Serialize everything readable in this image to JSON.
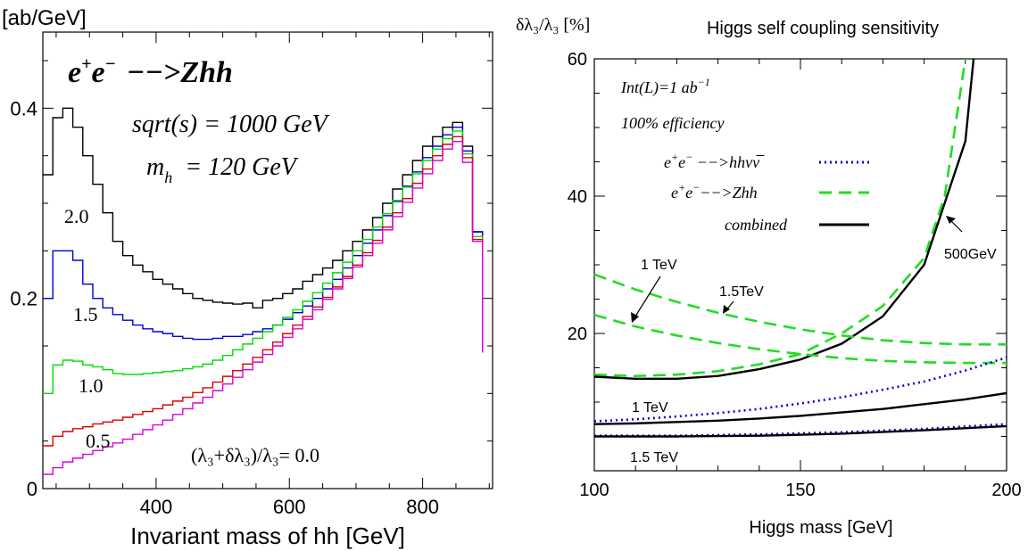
{
  "chart_data": [
    {
      "type": "line",
      "title": "e⁺e⁻ −−> Zhh",
      "title_parts": {
        "base": "e",
        "sup1": "+",
        "base2": "e",
        "sup2": "−",
        "arrow": "−−>",
        "proc": "Zhh"
      },
      "annotations": {
        "sqrts": "sqrt(s) = 1000 GeV",
        "mh_base": "m",
        "mh_sub": "h",
        "mh_rest": "= 120 GeV",
        "lambda_ratio": "(λ₃+δλ₃)/λ₃= 0.0"
      },
      "ylabel": "[ab/GeV]",
      "xlabel": "Invariant mass of hh [GeV]",
      "xlim": [
        230,
        905
      ],
      "ylim": [
        0,
        0.48
      ],
      "x_ticks": [
        "400",
        "600",
        "800"
      ],
      "x_tick_values": [
        400,
        600,
        800
      ],
      "y_ticks": [
        "0",
        "0.2",
        "0.4"
      ],
      "y_tick_values": [
        0,
        0.2,
        0.4
      ],
      "x_bin_edges": [
        230,
        245,
        260,
        275,
        290,
        305,
        320,
        335,
        350,
        365,
        380,
        395,
        410,
        425,
        440,
        455,
        470,
        485,
        500,
        515,
        530,
        545,
        560,
        575,
        590,
        605,
        620,
        635,
        650,
        665,
        680,
        695,
        710,
        725,
        740,
        755,
        770,
        785,
        800,
        815,
        830,
        845,
        860,
        875,
        890
      ],
      "series": [
        {
          "name": "2.0",
          "color": "#000000",
          "values": [
            0.33,
            0.39,
            0.4,
            0.38,
            0.35,
            0.32,
            0.29,
            0.26,
            0.245,
            0.235,
            0.228,
            0.22,
            0.215,
            0.21,
            0.205,
            0.2,
            0.198,
            0.196,
            0.195,
            0.194,
            0.195,
            0.19,
            0.198,
            0.2,
            0.205,
            0.21,
            0.218,
            0.225,
            0.232,
            0.24,
            0.25,
            0.26,
            0.272,
            0.285,
            0.3,
            0.315,
            0.33,
            0.345,
            0.36,
            0.37,
            0.38,
            0.385,
            0.36,
            0.27
          ]
        },
        {
          "name": "1.5",
          "color": "#0000dd",
          "values": [
            0.2,
            0.25,
            0.25,
            0.24,
            0.215,
            0.2,
            0.19,
            0.183,
            0.177,
            0.172,
            0.168,
            0.165,
            0.163,
            0.16,
            0.158,
            0.157,
            0.157,
            0.158,
            0.16,
            0.16,
            0.162,
            0.165,
            0.168,
            0.172,
            0.178,
            0.185,
            0.192,
            0.2,
            0.21,
            0.22,
            0.232,
            0.245,
            0.258,
            0.272,
            0.287,
            0.302,
            0.318,
            0.333,
            0.348,
            0.36,
            0.372,
            0.38,
            0.355,
            0.27
          ]
        },
        {
          "name": "1.0",
          "color": "#00dd00",
          "values": [
            0.1,
            0.13,
            0.135,
            0.134,
            0.13,
            0.128,
            0.125,
            0.121,
            0.12,
            0.12,
            0.121,
            0.122,
            0.123,
            0.124,
            0.126,
            0.128,
            0.131,
            0.135,
            0.14,
            0.146,
            0.152,
            0.158,
            0.165,
            0.172,
            0.18,
            0.188,
            0.197,
            0.206,
            0.216,
            0.227,
            0.238,
            0.25,
            0.262,
            0.275,
            0.289,
            0.303,
            0.317,
            0.331,
            0.345,
            0.357,
            0.368,
            0.376,
            0.352,
            0.265
          ]
        },
        {
          "name": "0.5",
          "color": "#dd0000",
          "values": [
            0.045,
            0.055,
            0.06,
            0.063,
            0.065,
            0.068,
            0.07,
            0.072,
            0.075,
            0.078,
            0.081,
            0.084,
            0.088,
            0.092,
            0.096,
            0.101,
            0.106,
            0.112,
            0.118,
            0.124,
            0.131,
            0.138,
            0.146,
            0.154,
            0.163,
            0.172,
            0.181,
            0.191,
            0.201,
            0.212,
            0.223,
            0.235,
            0.248,
            0.261,
            0.275,
            0.29,
            0.305,
            0.321,
            0.336,
            0.35,
            0.362,
            0.37,
            0.348,
            0.262
          ]
        },
        {
          "name": "0.0",
          "color": "#dd00dd",
          "values": [
            0.015,
            0.022,
            0.028,
            0.032,
            0.036,
            0.04,
            0.044,
            0.048,
            0.052,
            0.057,
            0.062,
            0.067,
            0.072,
            0.078,
            0.084,
            0.09,
            0.096,
            0.103,
            0.11,
            0.117,
            0.125,
            0.133,
            0.141,
            0.15,
            0.159,
            0.168,
            0.178,
            0.188,
            0.199,
            0.21,
            0.221,
            0.233,
            0.245,
            0.258,
            0.272,
            0.286,
            0.301,
            0.316,
            0.331,
            0.345,
            0.357,
            0.365,
            0.343,
            0.26
          ]
        }
      ]
    },
    {
      "type": "line",
      "title": "Higgs self coupling sensitivity",
      "ylabel": "δλ₃/λ₃ [%]",
      "xlabel": "Higgs mass [GeV]",
      "xlim": [
        100,
        200
      ],
      "ylim": [
        0,
        60
      ],
      "x_ticks": [
        "100",
        "150",
        "200"
      ],
      "x_tick_values": [
        100,
        150,
        200
      ],
      "y_ticks": [
        "20",
        "40",
        "60"
      ],
      "y_tick_values": [
        20,
        40,
        60
      ],
      "legend": {
        "position": "top-right",
        "note1": "Int(L)=1 ab",
        "note1_sup": "−1",
        "note2": "100% efficiency",
        "items": [
          {
            "label_pre": "e",
            "sup1": "+",
            "mid": "e",
            "sup2": "−",
            "label_post": " −−>hhνν̅",
            "style": "dotted",
            "color": "#0000dd"
          },
          {
            "label_pre": "e",
            "sup1": "+",
            "mid": "e",
            "sup2": "−",
            "label_post": "−−>Zhh",
            "style": "dashed",
            "color": "#22dd22"
          },
          {
            "label_pre": "combined",
            "sup1": "",
            "mid": "",
            "sup2": "",
            "label_post": "",
            "style": "solid",
            "color": "#000000"
          }
        ]
      },
      "annotations": {
        "tev1_upper": "1 TeV",
        "tev15_upper": "1.5TeV",
        "gev500": "500GeV",
        "tev1_lower": "1 TeV",
        "tev15_lower": "1.5 TeV"
      },
      "series": [
        {
          "name": "500GeV Zhh",
          "style": "dashed",
          "color": "#22dd22",
          "x": [
            100,
            110,
            120,
            130,
            140,
            150,
            160,
            170,
            180,
            185,
            190
          ],
          "y": [
            14,
            13.8,
            14,
            14.5,
            15.5,
            17,
            20,
            24,
            31,
            40,
            60
          ]
        },
        {
          "name": "500GeV combined",
          "style": "solid",
          "color": "#000000",
          "x": [
            100,
            110,
            120,
            130,
            140,
            150,
            160,
            170,
            180,
            190,
            192
          ],
          "y": [
            13.7,
            13.4,
            13.4,
            13.8,
            14.8,
            16.2,
            18.5,
            22.5,
            30,
            48,
            60
          ]
        },
        {
          "name": "1 TeV Zhh",
          "style": "dashed",
          "color": "#22dd22",
          "x": [
            100,
            110,
            120,
            130,
            140,
            150,
            160,
            170,
            180,
            190,
            200
          ],
          "y": [
            22.7,
            21,
            19.7,
            18.6,
            17.7,
            17,
            16.4,
            16,
            15.8,
            15.7,
            15.7
          ]
        },
        {
          "name": "1.5TeV Zhh",
          "style": "dashed",
          "color": "#22dd22",
          "x": [
            100,
            110,
            120,
            130,
            140,
            150,
            160,
            170,
            180,
            190,
            200
          ],
          "y": [
            28.6,
            26.4,
            24.6,
            23,
            21.7,
            20.6,
            19.7,
            19,
            18.6,
            18.4,
            18.4
          ]
        },
        {
          "name": "1 TeV hhvv",
          "style": "dotted",
          "color": "#0000dd",
          "x": [
            100,
            110,
            120,
            130,
            140,
            150,
            160,
            170,
            180,
            190,
            200
          ],
          "y": [
            7.2,
            7.5,
            7.9,
            8.4,
            9,
            9.8,
            10.7,
            11.8,
            13,
            14.6,
            16.5
          ]
        },
        {
          "name": "1 TeV combined",
          "style": "solid",
          "color": "#000000",
          "x": [
            100,
            110,
            120,
            130,
            140,
            150,
            160,
            170,
            180,
            190,
            200
          ],
          "y": [
            6.8,
            6.9,
            7.1,
            7.3,
            7.6,
            8,
            8.5,
            9,
            9.7,
            10.4,
            11.3
          ]
        },
        {
          "name": "1.5TeV hhvv",
          "style": "dotted",
          "color": "#0000dd",
          "x": [
            100,
            120,
            140,
            160,
            180,
            200
          ],
          "y": [
            5.1,
            5.1,
            5.3,
            5.6,
            6.1,
            6.8
          ]
        },
        {
          "name": "1.5TeV combined",
          "style": "solid",
          "color": "#000000",
          "x": [
            100,
            120,
            140,
            160,
            180,
            200
          ],
          "y": [
            5,
            5,
            5.1,
            5.4,
            5.9,
            6.5
          ]
        }
      ]
    }
  ]
}
